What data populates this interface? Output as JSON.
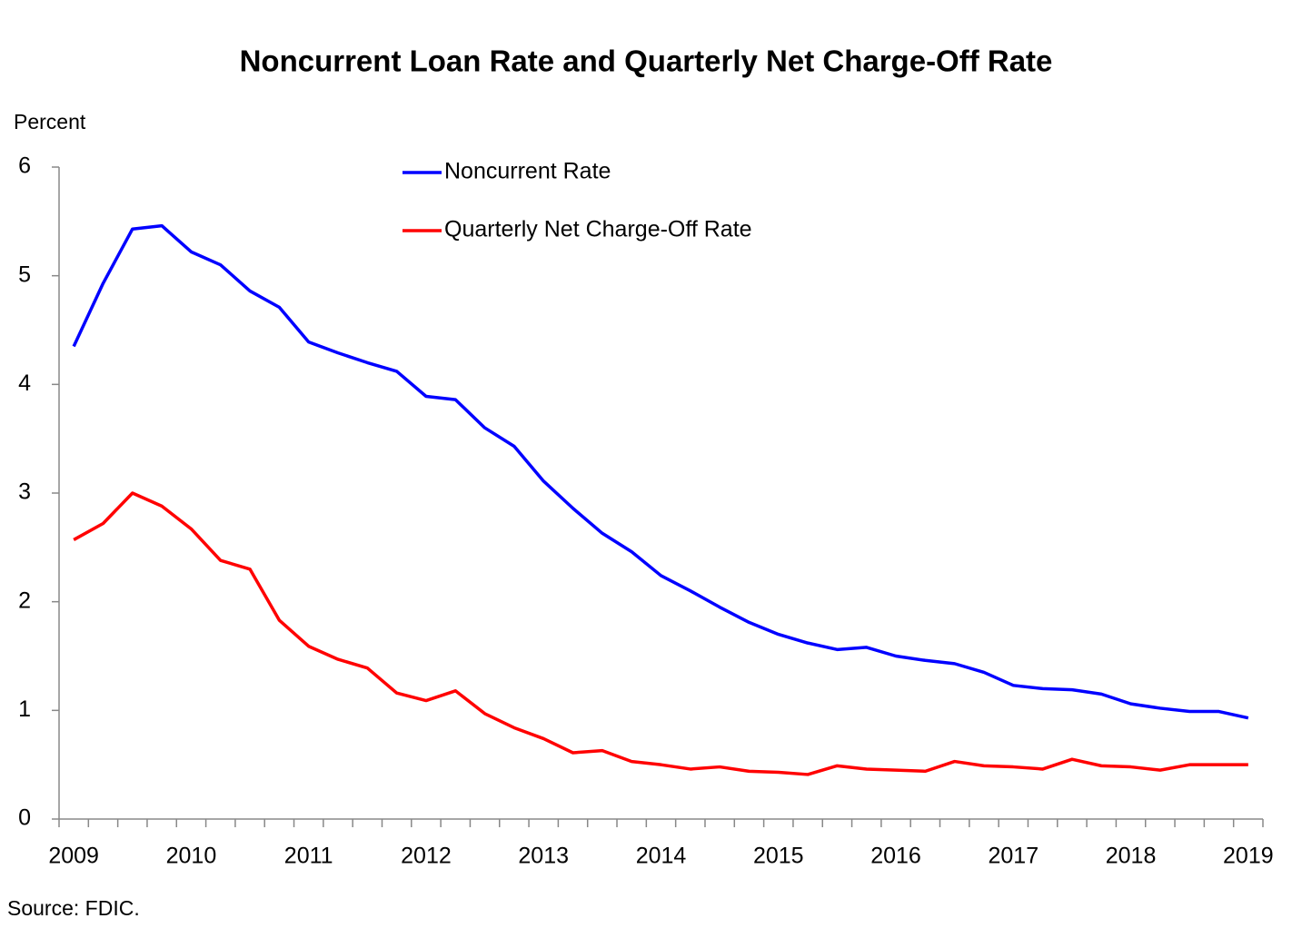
{
  "chart_data": {
    "type": "line",
    "title": "Noncurrent Loan Rate and Quarterly Net Charge-Off Rate",
    "y_label": "Percent",
    "source": "Source:  FDIC.",
    "categories": [
      "2009",
      null,
      null,
      null,
      "2010",
      null,
      null,
      null,
      "2011",
      null,
      null,
      null,
      "2012",
      null,
      null,
      null,
      "2013",
      null,
      null,
      null,
      "2014",
      null,
      null,
      null,
      "2015",
      null,
      null,
      null,
      "2016",
      null,
      null,
      null,
      "2017",
      null,
      null,
      null,
      "2018",
      null,
      null,
      null,
      "2019"
    ],
    "series": [
      {
        "name": "Noncurrent Rate",
        "color": "#0000ff",
        "values": [
          4.35,
          4.93,
          5.43,
          5.46,
          5.22,
          5.1,
          4.86,
          4.71,
          4.39,
          4.29,
          4.2,
          4.12,
          3.89,
          3.86,
          3.6,
          3.43,
          3.11,
          2.86,
          2.63,
          2.46,
          2.24,
          2.1,
          1.95,
          1.81,
          1.7,
          1.62,
          1.56,
          1.58,
          1.5,
          1.46,
          1.43,
          1.35,
          1.23,
          1.2,
          1.19,
          1.15,
          1.06,
          1.02,
          0.99,
          0.99,
          0.93
        ]
      },
      {
        "name": "Quarterly Net Charge-Off Rate",
        "color": "#ff0000",
        "values": [
          2.57,
          2.72,
          3.0,
          2.88,
          2.67,
          2.38,
          2.3,
          1.83,
          1.59,
          1.47,
          1.39,
          1.16,
          1.09,
          1.18,
          0.97,
          0.84,
          0.74,
          0.61,
          0.63,
          0.53,
          0.5,
          0.46,
          0.48,
          0.44,
          0.43,
          0.41,
          0.49,
          0.46,
          0.45,
          0.44,
          0.53,
          0.49,
          0.48,
          0.46,
          0.55,
          0.49,
          0.48,
          0.45,
          0.5,
          0.5,
          0.5
        ]
      }
    ],
    "ylim": [
      0,
      6
    ],
    "yticks": [
      0,
      1,
      2,
      3,
      4,
      5,
      6
    ],
    "grid": false,
    "legend": "upper center"
  }
}
